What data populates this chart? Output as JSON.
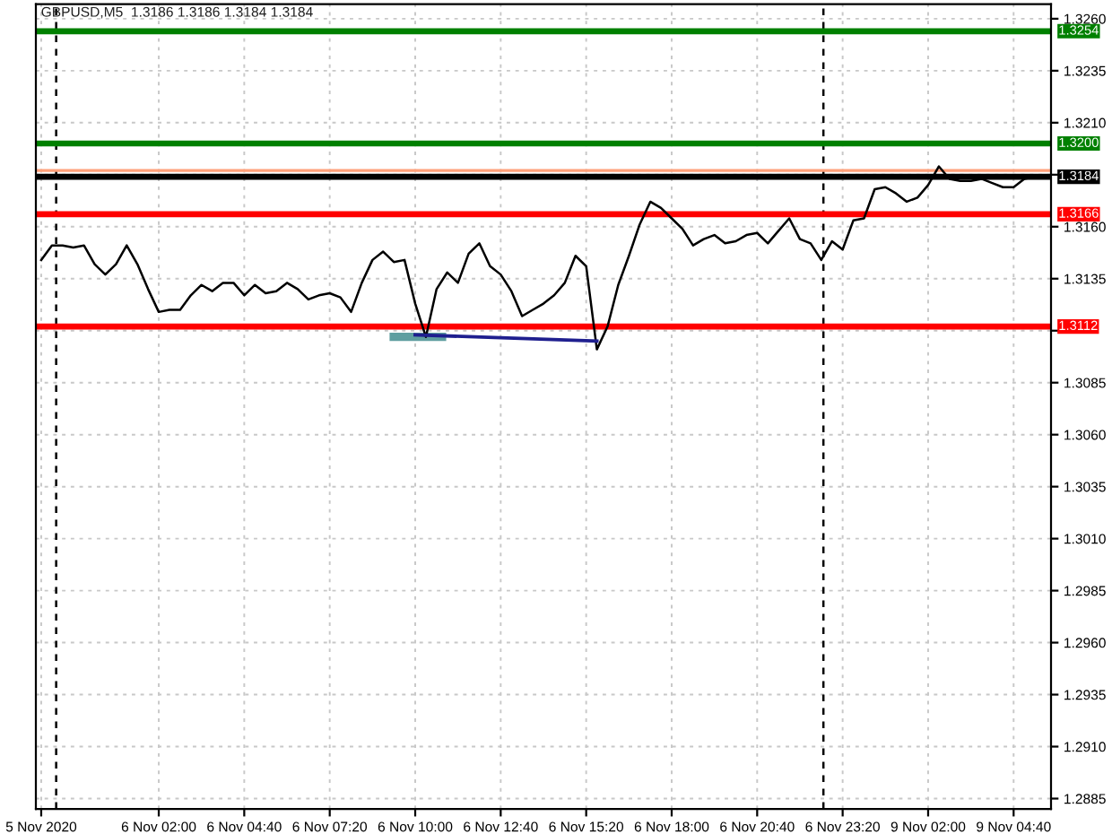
{
  "chart_data": {
    "type": "line",
    "title": "GBPUSD,M5  1.3186 1.3186 1.3184 1.3184",
    "categories": [
      "5 Nov 2020",
      null,
      null,
      null,
      null,
      null,
      null,
      null,
      null,
      null,
      null,
      "6 Nov 02:00",
      null,
      null,
      null,
      null,
      null,
      null,
      null,
      "6 Nov 04:40",
      null,
      null,
      null,
      null,
      null,
      null,
      null,
      "6 Nov 07:20",
      null,
      null,
      null,
      null,
      null,
      null,
      null,
      "6 Nov 10:00",
      null,
      null,
      null,
      null,
      null,
      null,
      null,
      "6 Nov 12:40",
      null,
      null,
      null,
      null,
      null,
      null,
      null,
      "6 Nov 15:20",
      null,
      null,
      null,
      null,
      null,
      null,
      null,
      "6 Nov 18:00",
      null,
      null,
      null,
      null,
      null,
      null,
      null,
      "6 Nov 20:40",
      null,
      null,
      null,
      null,
      null,
      null,
      null,
      "6 Nov 23:20",
      null,
      null,
      null,
      null,
      null,
      null,
      null,
      "9 Nov 02:00",
      null,
      null,
      null,
      null,
      null,
      null,
      null,
      "9 Nov 04:40",
      null,
      null,
      null
    ],
    "series": [
      {
        "color": "#000000",
        "values": [
          1.3144,
          1.3151,
          1.3151,
          1.315,
          1.3151,
          1.3142,
          1.3137,
          1.3142,
          1.3151,
          1.3142,
          1.313,
          1.3119,
          1.312,
          1.312,
          1.3127,
          1.3132,
          1.3129,
          1.3133,
          1.3133,
          1.3127,
          1.3132,
          1.3128,
          1.3129,
          1.3133,
          1.313,
          1.3125,
          1.3127,
          1.3128,
          1.3126,
          1.3119,
          1.3133,
          1.3144,
          1.3148,
          1.3143,
          1.3144,
          1.3123,
          1.3107,
          1.313,
          1.3138,
          1.3133,
          1.3147,
          1.3152,
          1.3141,
          1.3137,
          1.3129,
          1.3117,
          1.312,
          1.3123,
          1.3127,
          1.3133,
          1.3146,
          1.3141,
          1.3101,
          1.3112,
          1.3132,
          1.3146,
          1.3161,
          1.3172,
          1.3169,
          1.3164,
          1.3159,
          1.3151,
          1.3154,
          1.3156,
          1.3152,
          1.3153,
          1.3156,
          1.3157,
          1.3152,
          1.3158,
          1.3164,
          1.3154,
          1.3152,
          1.3144,
          1.3153,
          1.3149,
          1.3163,
          1.3164,
          1.3178,
          1.3179,
          1.3176,
          1.3172,
          1.3174,
          1.318,
          1.3189,
          1.3183,
          1.3182,
          1.3182,
          1.3183,
          1.3181,
          1.3179,
          1.3179,
          1.3183,
          1.3184,
          null
        ]
      },
      {
        "type": "line",
        "color": "#1f1f8f",
        "values": [
          null,
          null,
          null,
          null,
          null,
          null,
          null,
          null,
          null,
          null,
          null,
          null,
          null,
          null,
          null,
          null,
          null,
          null,
          null,
          null,
          null,
          null,
          null,
          null,
          null,
          null,
          null,
          null,
          null,
          null,
          null,
          null,
          null,
          null,
          null,
          1.3108,
          null,
          null,
          null,
          null,
          null,
          null,
          null,
          null,
          null,
          null,
          null,
          null,
          null,
          null,
          null,
          null,
          1.3105,
          null,
          null,
          null,
          null,
          null,
          null,
          null,
          null,
          null,
          null,
          null,
          null,
          null,
          null,
          null,
          null,
          null,
          null,
          null,
          null,
          null,
          null,
          null,
          null,
          null,
          null,
          null,
          null,
          null,
          null,
          null,
          null,
          null,
          null,
          null,
          null,
          null,
          null,
          null,
          null,
          null,
          null
        ]
      }
    ],
    "ylim": [
      1.288,
      1.3267
    ],
    "yticks": [
      {
        "value": 1.2885,
        "label": "1.2885"
      },
      {
        "value": 1.291,
        "label": "1.2910"
      },
      {
        "value": 1.2935,
        "label": "1.2935"
      },
      {
        "value": 1.296,
        "label": "1.2960"
      },
      {
        "value": 1.2985,
        "label": "1.2985"
      },
      {
        "value": 1.301,
        "label": "1.3010"
      },
      {
        "value": 1.3035,
        "label": "1.3035"
      },
      {
        "value": 1.306,
        "label": "1.3060"
      },
      {
        "value": 1.3085,
        "label": "1.3085"
      },
      {
        "value": 1.311,
        "label": null
      },
      {
        "value": 1.3135,
        "label": "1.3135"
      },
      {
        "value": 1.316,
        "label": "1.3160"
      },
      {
        "value": 1.3185,
        "label": null
      },
      {
        "value": 1.321,
        "label": "1.3210"
      },
      {
        "value": 1.3235,
        "label": "1.3235"
      },
      {
        "value": 1.326,
        "label": "1.3260"
      }
    ],
    "ref_lines": [
      {
        "axis": "y",
        "value": 1.3254,
        "label": "1.3254",
        "color": "#008000"
      },
      {
        "axis": "y",
        "value": 1.32,
        "label": "1.3200",
        "color": "#008000"
      },
      {
        "axis": "y",
        "value": 1.3187,
        "label": null,
        "color": "#ffa07a"
      },
      {
        "axis": "y",
        "value": 1.3184,
        "label": "1.3184",
        "color": "#000000"
      },
      {
        "axis": "y",
        "value": 1.3166,
        "label": "1.3166",
        "color": "#ff0000"
      },
      {
        "axis": "y",
        "value": 1.3112,
        "label": "1.3112",
        "color": "#ff0000"
      }
    ],
    "grid": true
  }
}
